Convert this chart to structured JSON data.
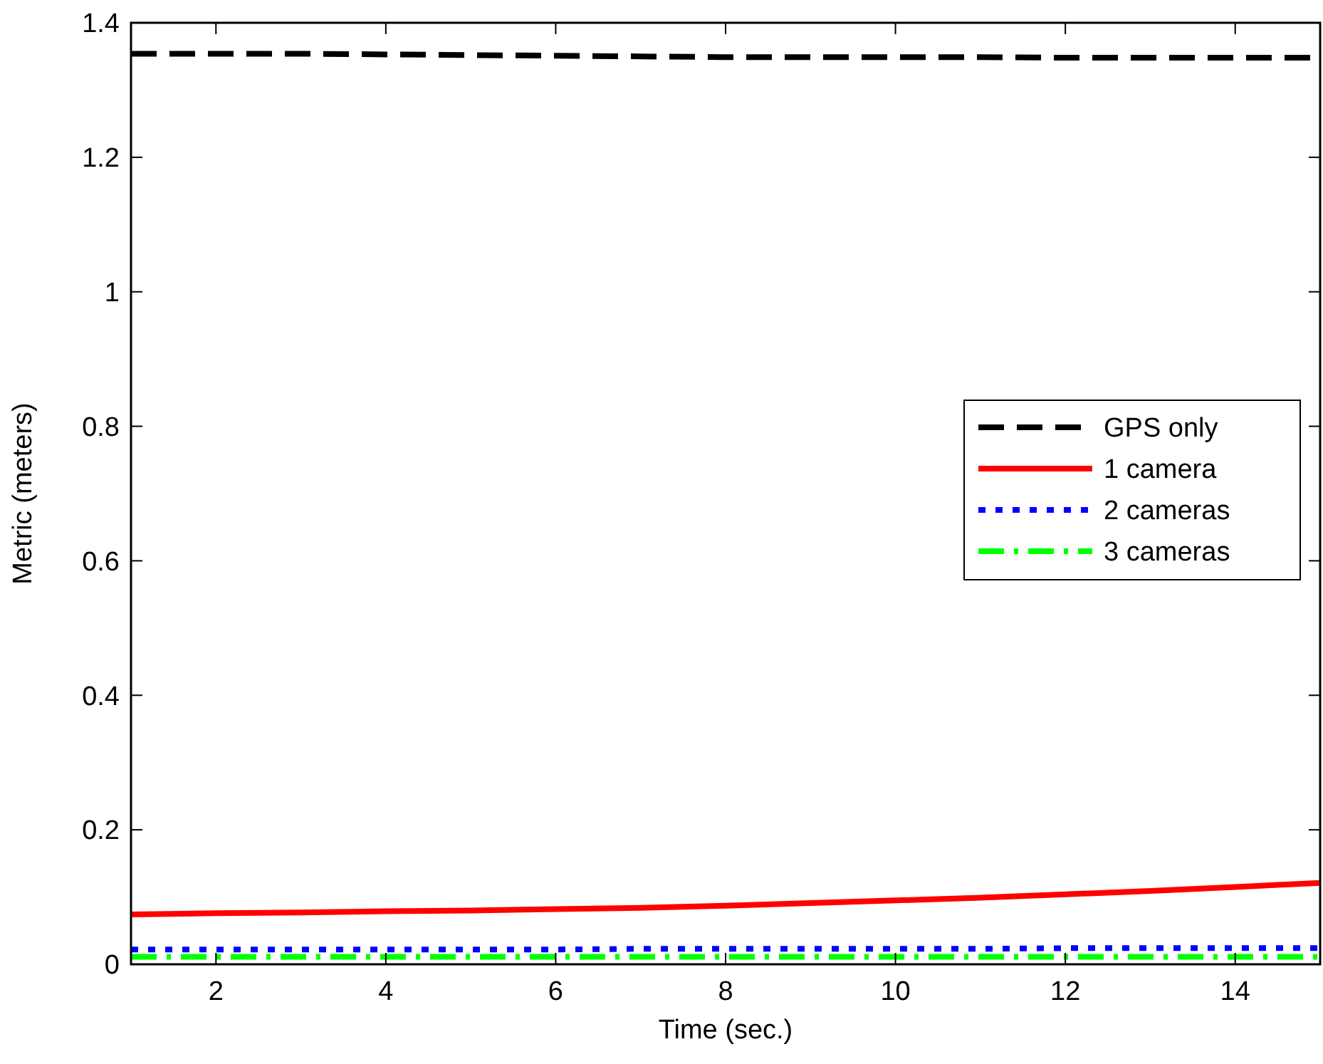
{
  "chart_data": {
    "type": "line",
    "xlabel": "Time (sec.)",
    "ylabel": "Metric (meters)",
    "x": [
      1,
      2,
      3,
      4,
      5,
      6,
      7,
      8,
      9,
      10,
      11,
      12,
      13,
      14,
      15
    ],
    "xlim": [
      1,
      15
    ],
    "ylim": [
      0,
      1.4
    ],
    "xticks": [
      2,
      4,
      6,
      8,
      10,
      12,
      14
    ],
    "yticks": [
      0,
      0.2,
      0.4,
      0.6,
      0.8,
      1,
      1.2,
      1.4
    ],
    "legend": "right",
    "grid": false,
    "series": [
      {
        "name": "GPS only",
        "color": "#000000",
        "line_style": "dashed",
        "values": [
          1.354,
          1.354,
          1.354,
          1.353,
          1.352,
          1.351,
          1.35,
          1.349,
          1.349,
          1.349,
          1.349,
          1.348,
          1.348,
          1.348,
          1.348
        ]
      },
      {
        "name": "1 camera",
        "color": "#ff0000",
        "line_style": "solid",
        "values": [
          0.074,
          0.076,
          0.077,
          0.079,
          0.08,
          0.082,
          0.084,
          0.087,
          0.091,
          0.095,
          0.099,
          0.104,
          0.109,
          0.115,
          0.121
        ]
      },
      {
        "name": "2 cameras",
        "color": "#0000ff",
        "line_style": "dotted",
        "values": [
          0.022,
          0.022,
          0.022,
          0.022,
          0.022,
          0.022,
          0.023,
          0.023,
          0.023,
          0.023,
          0.023,
          0.024,
          0.024,
          0.024,
          0.024
        ]
      },
      {
        "name": "3 cameras",
        "color": "#00ff00",
        "line_style": "dashdot",
        "values": [
          0.011,
          0.011,
          0.011,
          0.011,
          0.011,
          0.011,
          0.011,
          0.011,
          0.011,
          0.011,
          0.011,
          0.011,
          0.011,
          0.011,
          0.011
        ]
      }
    ]
  }
}
